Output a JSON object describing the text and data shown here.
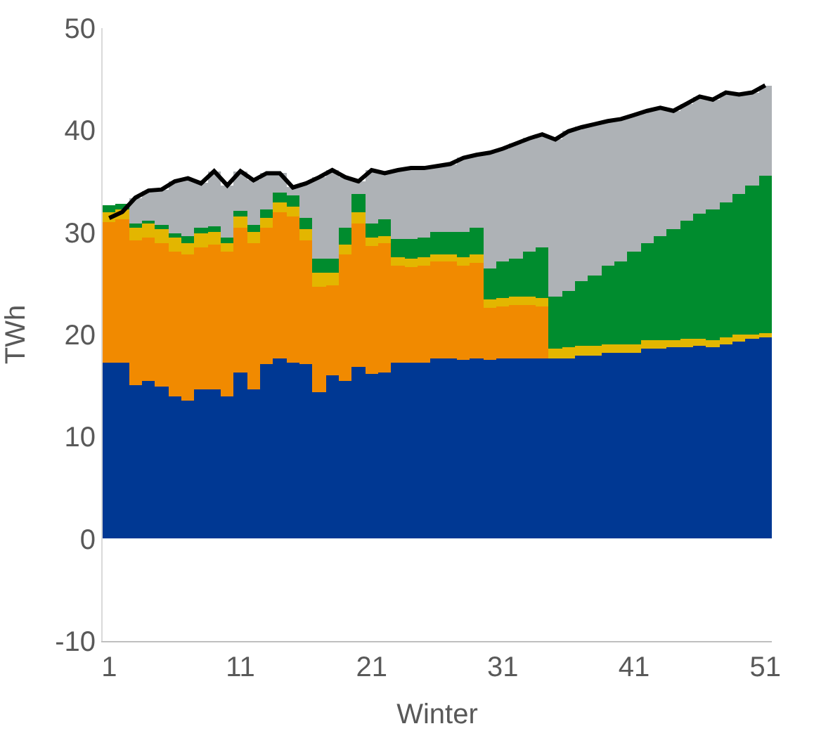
{
  "chart_data": {
    "type": "bar",
    "stacked": true,
    "xlabel": "Winter",
    "ylabel": "TWh",
    "x": [
      1,
      2,
      3,
      4,
      5,
      6,
      7,
      8,
      9,
      10,
      11,
      12,
      13,
      14,
      15,
      16,
      17,
      18,
      19,
      20,
      21,
      22,
      23,
      24,
      25,
      26,
      27,
      28,
      29,
      30,
      31,
      32,
      33,
      34,
      35,
      36,
      37,
      38,
      39,
      40,
      41,
      42,
      43,
      44,
      45,
      46,
      47,
      48,
      49,
      50,
      51
    ],
    "xlim": [
      0.5,
      51.5
    ],
    "xticks": [
      1,
      11,
      21,
      31,
      41,
      51
    ],
    "ylim": [
      -10,
      50
    ],
    "yticks": [
      -10,
      0,
      10,
      20,
      30,
      40,
      50
    ],
    "grid": false,
    "series": [
      {
        "color": "#003893",
        "values": [
          17.2,
          17.2,
          15.1,
          15.4,
          14.9,
          14.0,
          13.5,
          14.6,
          14.6,
          13.9,
          16.3,
          14.7,
          17.1,
          17.6,
          17.2,
          17.1,
          14.3,
          16.0,
          15.5,
          16.9,
          16.1,
          16.3,
          17.2,
          17.2,
          17.3,
          17.6,
          17.6,
          17.5,
          17.6,
          17.5,
          17.6,
          17.7,
          17.7,
          17.7,
          17.6,
          17.7,
          18.0,
          18.0,
          18.2,
          18.2,
          18.2,
          18.6,
          18.6,
          18.7,
          18.7,
          18.9,
          18.7,
          19.0,
          19.3,
          19.6,
          19.7
        ]
      },
      {
        "color": "#f18a00",
        "values": [
          13.8,
          14.1,
          14.1,
          14.1,
          14.1,
          14.1,
          14.3,
          14.0,
          14.2,
          14.2,
          14.1,
          14.3,
          13.3,
          14.4,
          14.3,
          12.1,
          10.4,
          8.8,
          12.3,
          14.0,
          12.6,
          12.7,
          9.6,
          9.4,
          9.5,
          9.5,
          9.5,
          9.3,
          9.4,
          5.1,
          5.2,
          5.2,
          5.2,
          5.1,
          0,
          0,
          0,
          0,
          0,
          0,
          0,
          0,
          0,
          0,
          0,
          0,
          0,
          0,
          0,
          0,
          0
        ]
      },
      {
        "color": "#e3b600",
        "values": [
          1.0,
          0.9,
          1.2,
          1.4,
          1.3,
          1.4,
          1.2,
          1.3,
          1.2,
          0.9,
          1.1,
          1.0,
          1.0,
          1.0,
          1.0,
          1.1,
          1.3,
          1.3,
          1.0,
          1.1,
          0.8,
          0.6,
          0.8,
          0.9,
          0.8,
          0.8,
          0.8,
          0.8,
          0.8,
          0.8,
          0.8,
          0.8,
          0.8,
          0.8,
          1.0,
          1.0,
          0.9,
          0.9,
          0.9,
          0.9,
          0.9,
          0.9,
          0.8,
          0.8,
          0.9,
          0.7,
          0.8,
          0.7,
          0.7,
          0.4,
          0.5
        ]
      },
      {
        "color": "#008c2e",
        "values": [
          0.6,
          0.6,
          0.5,
          0.3,
          0.4,
          0.4,
          0.6,
          0.6,
          0.6,
          0.5,
          0.6,
          0.7,
          0.8,
          0.9,
          1.1,
          1.1,
          1.4,
          1.4,
          1.7,
          1.7,
          1.4,
          1.7,
          1.7,
          1.8,
          1.9,
          2.1,
          2.2,
          2.5,
          2.7,
          3.1,
          3.6,
          3.8,
          4.4,
          4.9,
          5.1,
          5.6,
          6.3,
          6.9,
          7.6,
          8.1,
          9.0,
          9.5,
          10.3,
          10.8,
          11.5,
          12.2,
          12.7,
          13.3,
          13.8,
          14.6,
          15.3
        ]
      },
      {
        "color": "#aeb2b6",
        "values": [
          0,
          0,
          2.5,
          2.9,
          3.5,
          5.1,
          5.7,
          4.3,
          5.4,
          5.1,
          3.9,
          4.4,
          3.6,
          1.9,
          0.8,
          3.4,
          8.0,
          8.6,
          4.9,
          1.3,
          5.2,
          4.5,
          6.8,
          7.0,
          6.8,
          6.5,
          6.6,
          7.2,
          7.1,
          11.3,
          11.0,
          11.2,
          11.1,
          11.1,
          15.4,
          15.6,
          15.1,
          14.8,
          14.2,
          13.9,
          13.4,
          12.9,
          12.5,
          11.6,
          11.5,
          11.5,
          10.8,
          10.7,
          9.7,
          9.1,
          8.9
        ]
      },
      {
        "type": "line",
        "color": "#000000",
        "values": [
          31.4,
          32.0,
          33.4,
          34.1,
          34.2,
          35.0,
          35.3,
          34.8,
          36.0,
          34.6,
          36.0,
          35.1,
          35.8,
          35.8,
          34.4,
          34.8,
          35.4,
          36.1,
          35.4,
          35.0,
          36.1,
          35.8,
          36.1,
          36.3,
          36.3,
          36.5,
          36.7,
          37.3,
          37.6,
          37.8,
          38.2,
          38.7,
          39.2,
          39.6,
          39.1,
          39.9,
          40.3,
          40.6,
          40.9,
          41.1,
          41.5,
          41.9,
          42.2,
          41.9,
          42.6,
          43.3,
          43.0,
          43.7,
          43.5,
          43.7,
          44.4
        ]
      }
    ]
  }
}
